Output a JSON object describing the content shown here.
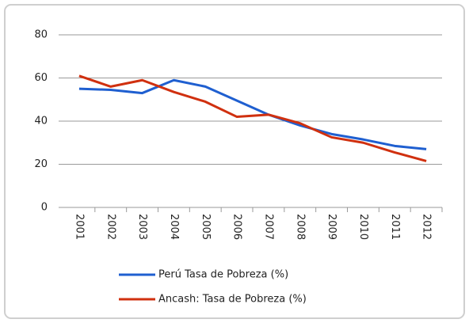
{
  "chart_data": {
    "type": "line",
    "categories": [
      "2001",
      "2002",
      "2003",
      "2004",
      "2005",
      "2006",
      "2007",
      "2008",
      "2009",
      "2010",
      "2011",
      "2012"
    ],
    "series": [
      {
        "name": "Perú Tasa de Pobreza (%)",
        "color": "#1f5fd0",
        "values": [
          55,
          54.5,
          53,
          59,
          56,
          49.5,
          43,
          38,
          34,
          31.5,
          28.5,
          27
        ]
      },
      {
        "name": "Ancash: Tasa de Pobreza (%)",
        "color": "#d0300f",
        "values": [
          61,
          56,
          59,
          53.5,
          49,
          42,
          43,
          39,
          32.5,
          30,
          25.5,
          21.5
        ]
      }
    ],
    "ylim": [
      0,
      80
    ],
    "yticks": [
      0,
      20,
      40,
      60,
      80
    ],
    "grid": true,
    "legend": "bottom"
  }
}
